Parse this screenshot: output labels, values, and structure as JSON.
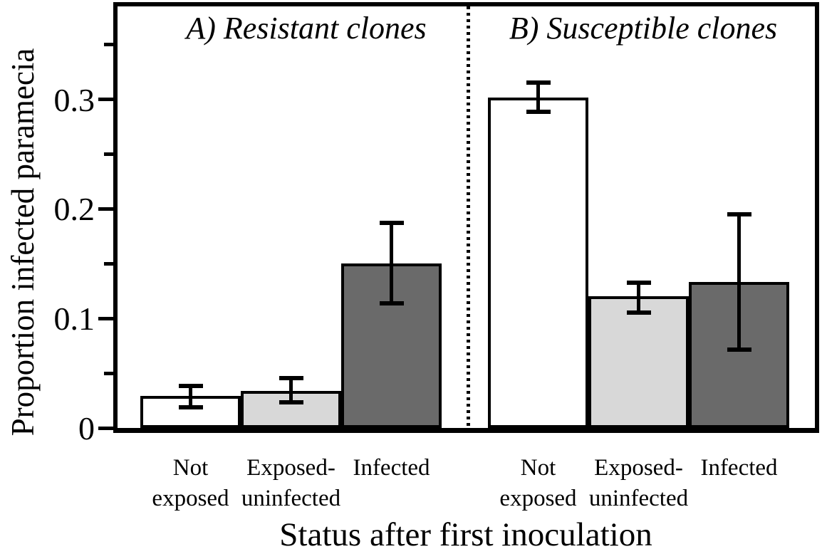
{
  "chart_data": {
    "type": "bar",
    "title": "",
    "ylabel": "Proportion infected paramecia",
    "xlabel": "Status after first inoculation",
    "ylim": [
      0,
      0.385
    ],
    "grid": false,
    "legend_position": "none",
    "y_major_ticks": [
      {
        "value": 0,
        "label": "0"
      },
      {
        "value": 0.1,
        "label": "0.1"
      },
      {
        "value": 0.2,
        "label": "0.2"
      },
      {
        "value": 0.3,
        "label": "0.3"
      }
    ],
    "y_minor_ticks": [
      0.05,
      0.15,
      0.25,
      0.35
    ],
    "colors": {
      "axis": "#000000",
      "text": "#000000",
      "bar_not_exposed": "#ffffff",
      "bar_exposed_uninfected": "#d8d8d8",
      "bar_infected": "#6a6a6a"
    },
    "panels": [
      {
        "label": "A) Resistant clones",
        "bars": [
          {
            "category_line1": "Not",
            "category_line2": "exposed",
            "value": 0.029,
            "err_low": 0.018,
            "err_high": 0.039,
            "color": "#ffffff"
          },
          {
            "category_line1": "Exposed-",
            "category_line2": "uninfected",
            "value": 0.034,
            "err_low": 0.023,
            "err_high": 0.046,
            "color": "#d8d8d8"
          },
          {
            "category_line1": "Infected",
            "category_line2": "",
            "value": 0.15,
            "err_low": 0.113,
            "err_high": 0.188,
            "color": "#6a6a6a"
          }
        ]
      },
      {
        "label": "B) Susceptible clones",
        "bars": [
          {
            "category_line1": "Not",
            "category_line2": "exposed",
            "value": 0.302,
            "err_low": 0.288,
            "err_high": 0.316,
            "color": "#ffffff"
          },
          {
            "category_line1": "Exposed-",
            "category_line2": "uninfected",
            "value": 0.12,
            "err_low": 0.105,
            "err_high": 0.133,
            "color": "#d8d8d8"
          },
          {
            "category_line1": "Infected",
            "category_line2": "",
            "value": 0.133,
            "err_low": 0.071,
            "err_high": 0.196,
            "color": "#6a6a6a"
          }
        ]
      }
    ]
  }
}
